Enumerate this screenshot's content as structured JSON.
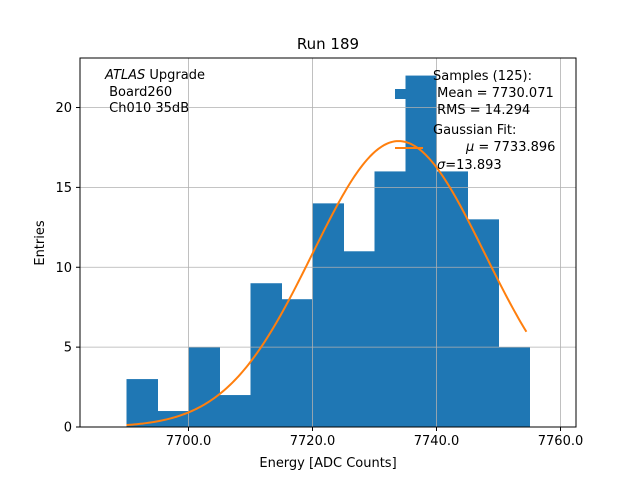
{
  "chart_data": {
    "type": "bar",
    "title": "Run 189",
    "xlabel": "Energy [ADC Counts]",
    "ylabel": "Entries",
    "xlim": [
      7682.5,
      7762.5
    ],
    "ylim": [
      0,
      23.1
    ],
    "grid": true,
    "xticks": [
      7700,
      7720,
      7740,
      7760
    ],
    "xtick_labels": [
      "7700.0",
      "7720.0",
      "7740.0",
      "7760.0"
    ],
    "yticks": [
      0,
      5,
      10,
      15,
      20
    ],
    "ytick_labels": [
      "0",
      "5",
      "10",
      "15",
      "20"
    ],
    "bins": [
      {
        "x0": 7690.0,
        "x1": 7695.0,
        "count": 3
      },
      {
        "x0": 7695.0,
        "x1": 7700.0,
        "count": 1
      },
      {
        "x0": 7700.0,
        "x1": 7705.0,
        "count": 5
      },
      {
        "x0": 7705.0,
        "x1": 7710.0,
        "count": 2
      },
      {
        "x0": 7710.0,
        "x1": 7715.0,
        "count": 9
      },
      {
        "x0": 7715.0,
        "x1": 7720.0,
        "count": 8
      },
      {
        "x0": 7720.0,
        "x1": 7725.0,
        "count": 14
      },
      {
        "x0": 7725.0,
        "x1": 7730.0,
        "count": 11
      },
      {
        "x0": 7730.0,
        "x1": 7735.0,
        "count": 16
      },
      {
        "x0": 7735.0,
        "x1": 7740.0,
        "count": 22
      },
      {
        "x0": 7740.0,
        "x1": 7745.0,
        "count": 16
      },
      {
        "x0": 7745.0,
        "x1": 7750.0,
        "count": 13
      },
      {
        "x0": 7750.0,
        "x1": 7755.0,
        "count": 5
      }
    ],
    "fit": {
      "type": "gaussian",
      "mu": 7733.896,
      "sigma": 13.893,
      "amplitude": 17.9,
      "x_range": [
        7690.0,
        7754.5
      ]
    },
    "bar_color": "#1f77b4",
    "fit_color": "#ff7f0e",
    "annotation": {
      "line1_italic": "ATLAS",
      "line1_rest": " Upgrade",
      "line2": " Board260",
      "line3": " Ch010 35dB"
    },
    "legend": {
      "position": "top-right",
      "samples_line1": "Samples (125):",
      "samples_line2": " Mean = 7730.071",
      "samples_line3": " RMS = 14.294",
      "fit_line1": "Gaussian Fit:",
      "fit_line2_sym": "μ",
      "fit_line2_val": " = 7733.896",
      "fit_line3_sym": "σ",
      "fit_line3_val": "=13.893"
    }
  }
}
